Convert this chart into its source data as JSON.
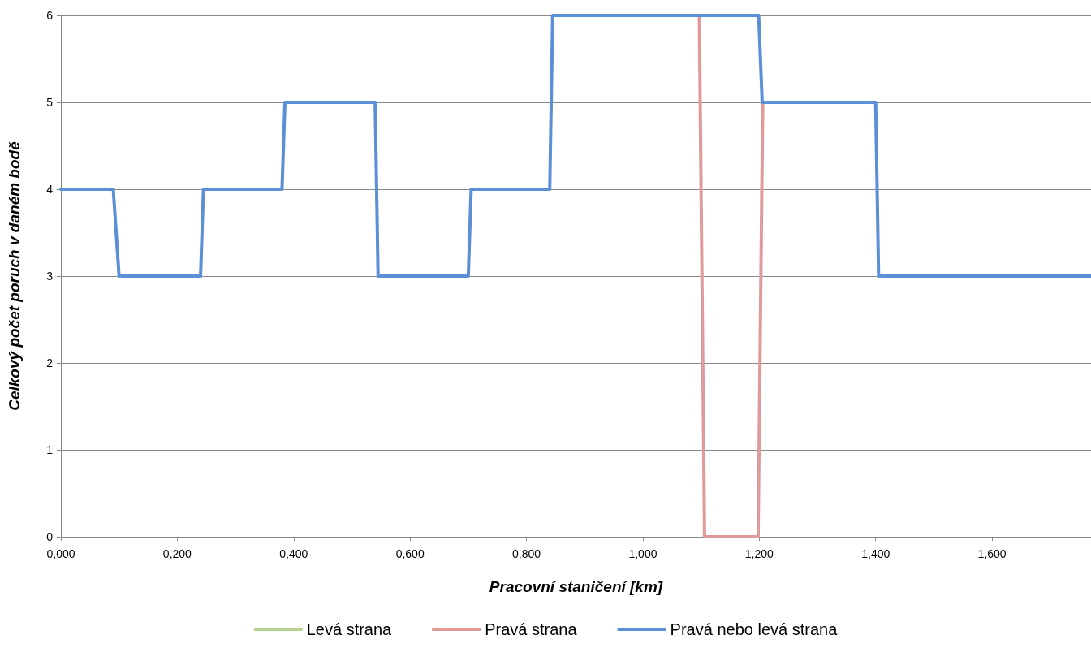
{
  "chart_data": {
    "type": "line",
    "xlabel": "Pracovní staničení [km]",
    "ylabel": "Celkový počet poruch v daném bodě",
    "xlim": [
      0,
      1.77
    ],
    "ylim": [
      0,
      6
    ],
    "xticks": [
      {
        "value": 0,
        "label": "0,000"
      },
      {
        "value": 0.2,
        "label": "0,200"
      },
      {
        "value": 0.4,
        "label": "0,400"
      },
      {
        "value": 0.6,
        "label": "0,600"
      },
      {
        "value": 0.8,
        "label": "0,800"
      },
      {
        "value": 1.0,
        "label": "1,000"
      },
      {
        "value": 1.2,
        "label": "1,200"
      },
      {
        "value": 1.4,
        "label": "1,400"
      },
      {
        "value": 1.6,
        "label": "1,600"
      }
    ],
    "yticks": [
      0,
      1,
      2,
      3,
      4,
      5,
      6
    ],
    "grid": "y",
    "legend": "bottom",
    "marker": "none",
    "line_style": "solid",
    "series": [
      {
        "name": "Levá strana",
        "color": "#b5d58f"
      },
      {
        "name": "Pravá strana",
        "color": "#e09a9a",
        "x": [
          1.097,
          1.106,
          1.198,
          1.206
        ],
        "values": [
          6,
          0,
          0,
          5
        ]
      },
      {
        "name": "Pravá nebo levá strana",
        "color": "#5b8fd6",
        "x": [
          0,
          0.09,
          0.1,
          0.24,
          0.245,
          0.38,
          0.385,
          0.54,
          0.545,
          0.7,
          0.705,
          0.84,
          0.845,
          1.199,
          1.205,
          1.4,
          1.405,
          1.77
        ],
        "values": [
          4,
          4,
          3,
          3,
          4,
          4,
          5,
          5,
          3,
          3,
          4,
          4,
          6,
          6,
          5,
          5,
          3,
          3
        ]
      }
    ]
  }
}
